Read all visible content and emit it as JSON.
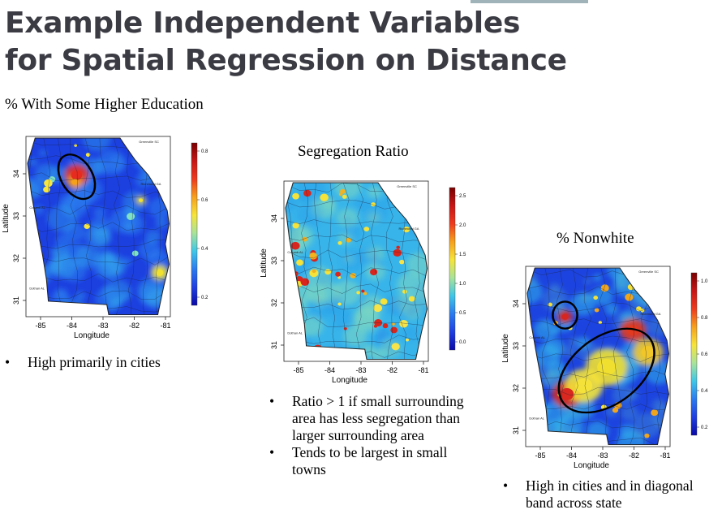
{
  "slide": {
    "title_lines": [
      "Example Independent Variables",
      "for Spatial Regression on Distance"
    ]
  },
  "maps": [
    {
      "caption": "% With Some Higher Education",
      "xlabel": "Longitude",
      "ylabel": "Latitude",
      "x_ticks": [
        "-85",
        "-84",
        "-83",
        "-82",
        "-81"
      ],
      "y_ticks": [
        "34",
        "33",
        "32",
        "31"
      ],
      "colorbar_ticks": [
        "0.8",
        "0.6",
        "0.4",
        "0.2"
      ],
      "city_labels": [
        "Greenville SC",
        "Richmond GA",
        "Columb AL",
        "Dothan AL"
      ],
      "bullets": [
        "High primarily in cities"
      ]
    },
    {
      "caption": "Segregation Ratio",
      "xlabel": "Longitude",
      "ylabel": "Latitude",
      "x_ticks": [
        "-85",
        "-84",
        "-83",
        "-82",
        "-81"
      ],
      "y_ticks": [
        "34",
        "33",
        "32",
        "31"
      ],
      "colorbar_ticks": [
        "2.5",
        "2.0",
        "1.5",
        "1.0",
        "0.5",
        "0.0"
      ],
      "city_labels": [
        "Greenville SC",
        "Richmond GA",
        "Columb AL",
        "Dothan AL"
      ],
      "bullets": [
        "Ratio > 1 if small surrounding area has less segregation than larger surrounding area",
        "Tends to be largest in small towns"
      ]
    },
    {
      "caption": "% Nonwhite",
      "xlabel": "Longitude",
      "ylabel": "Latitude",
      "x_ticks": [
        "-85",
        "-84",
        "-83",
        "-82",
        "-81"
      ],
      "y_ticks": [
        "34",
        "33",
        "32",
        "31"
      ],
      "colorbar_ticks": [
        "1.0",
        "0.8",
        "0.6",
        "0.4",
        "0.2"
      ],
      "city_labels": [
        "Greenville SC",
        "Richmond GA",
        "Columb AL",
        "Dothan AL"
      ],
      "bullets": [
        "High in cities and in diagonal band across state"
      ]
    }
  ]
}
